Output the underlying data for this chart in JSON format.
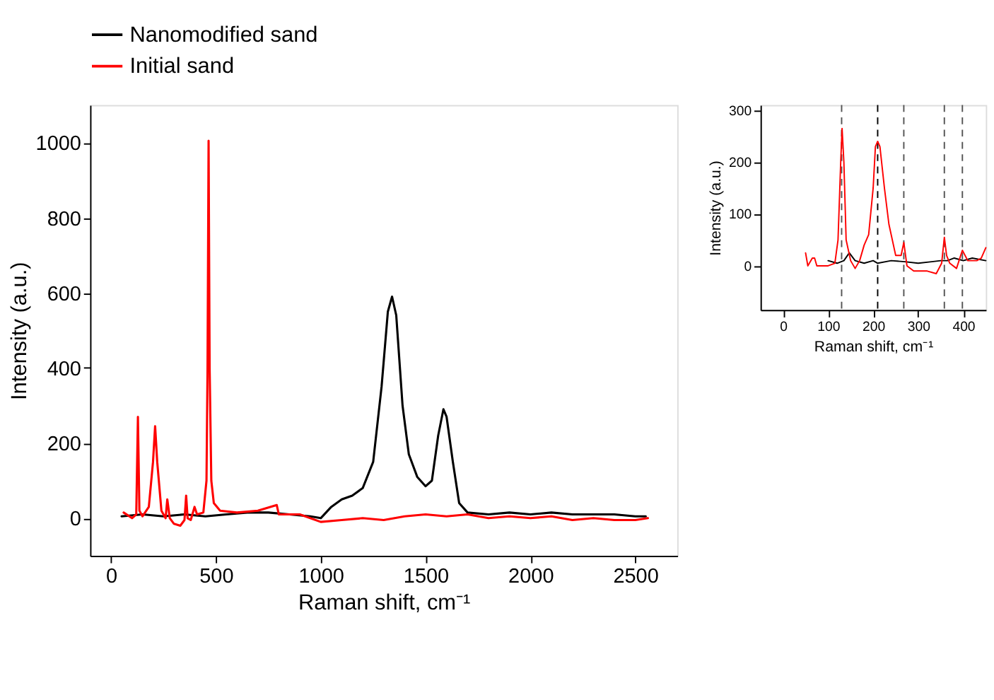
{
  "chart_data": [
    {
      "type": "line",
      "xlabel": "Raman shift, cm⁻¹",
      "ylabel": "Intensity (a.u.)",
      "xlim": [
        -100,
        2700
      ],
      "ylim": [
        -100,
        1100
      ],
      "xticks": [
        0,
        500,
        1000,
        1500,
        2000,
        2500
      ],
      "yticks": [
        0,
        200,
        400,
        600,
        800,
        1000
      ],
      "legend": "top",
      "grid": false,
      "line_style": "solid",
      "series": [
        {
          "name": "Nanomodified sand",
          "color": "#000000",
          "x": [
            50,
            150,
            250,
            350,
            450,
            550,
            650,
            750,
            850,
            950,
            1000,
            1050,
            1100,
            1150,
            1200,
            1250,
            1290,
            1320,
            1340,
            1360,
            1390,
            1420,
            1460,
            1500,
            1530,
            1560,
            1585,
            1600,
            1630,
            1660,
            1700,
            1800,
            1900,
            2000,
            2100,
            2200,
            2300,
            2400,
            2500,
            2550
          ],
          "values": [
            5,
            10,
            5,
            10,
            5,
            10,
            15,
            15,
            10,
            5,
            0,
            30,
            50,
            60,
            80,
            150,
            350,
            550,
            590,
            540,
            300,
            170,
            110,
            85,
            100,
            220,
            290,
            270,
            150,
            40,
            15,
            10,
            15,
            10,
            15,
            10,
            10,
            10,
            5,
            5
          ]
        },
        {
          "name": "Initial sand",
          "color": "#ff0000",
          "x": [
            60,
            100,
            120,
            128,
            135,
            150,
            180,
            200,
            210,
            220,
            240,
            260,
            268,
            280,
            300,
            330,
            350,
            358,
            365,
            380,
            398,
            410,
            440,
            455,
            460,
            465,
            470,
            478,
            490,
            520,
            600,
            700,
            790,
            800,
            900,
            1000,
            1100,
            1200,
            1300,
            1400,
            1500,
            1600,
            1700,
            1800,
            1900,
            2000,
            2100,
            2200,
            2300,
            2400,
            2500,
            2560
          ],
          "values": [
            15,
            0,
            10,
            270,
            20,
            5,
            30,
            150,
            245,
            150,
            20,
            0,
            50,
            0,
            -15,
            -20,
            -5,
            60,
            0,
            -5,
            30,
            10,
            15,
            100,
            400,
            1005,
            400,
            100,
            40,
            20,
            15,
            20,
            35,
            10,
            10,
            -10,
            -5,
            0,
            -5,
            5,
            10,
            5,
            10,
            0,
            5,
            0,
            5,
            -5,
            0,
            -5,
            -5,
            0
          ]
        }
      ]
    },
    {
      "type": "line",
      "xlabel": "Raman shift, cm⁻¹",
      "ylabel": "Intensity (a.u.)",
      "xlim": [
        -50,
        450
      ],
      "ylim": [
        -85,
        310
      ],
      "xticks": [
        0,
        100,
        200,
        300,
        400
      ],
      "yticks": [
        0,
        100,
        200,
        300
      ],
      "grid": false,
      "line_style": "solid",
      "ref_lines": [
        {
          "axis": "x",
          "value": 130,
          "color": "#555555",
          "line_style": "dashed"
        },
        {
          "axis": "x",
          "value": 210,
          "color": "#000000",
          "line_style": "dashed"
        },
        {
          "axis": "x",
          "value": 268,
          "color": "#555555",
          "line_style": "dashed"
        },
        {
          "axis": "x",
          "value": 358,
          "color": "#555555",
          "line_style": "dashed"
        },
        {
          "axis": "x",
          "value": 398,
          "color": "#555555",
          "line_style": "dashed"
        }
      ],
      "series": [
        {
          "color": "#000000",
          "x": [
            100,
            120,
            135,
            147,
            160,
            180,
            200,
            210,
            240,
            270,
            300,
            330,
            350,
            365,
            380,
            400,
            420,
            450
          ],
          "values": [
            10,
            5,
            10,
            25,
            10,
            5,
            10,
            5,
            10,
            8,
            5,
            8,
            10,
            10,
            15,
            10,
            15,
            10
          ]
        },
        {
          "color": "#ff0000",
          "x": [
            50,
            55,
            65,
            70,
            75,
            100,
            115,
            122,
            128,
            131,
            135,
            140,
            150,
            160,
            170,
            180,
            190,
            200,
            205,
            210,
            215,
            225,
            235,
            250,
            262,
            268,
            275,
            290,
            320,
            340,
            352,
            358,
            363,
            370,
            385,
            398,
            410,
            430,
            440,
            450
          ],
          "values": [
            25,
            0,
            15,
            15,
            0,
            0,
            5,
            50,
            200,
            265,
            200,
            50,
            10,
            -5,
            10,
            40,
            60,
            150,
            230,
            240,
            230,
            150,
            80,
            20,
            20,
            45,
            0,
            -10,
            -10,
            -15,
            5,
            55,
            20,
            5,
            -5,
            30,
            10,
            10,
            15,
            35
          ]
        }
      ]
    }
  ]
}
